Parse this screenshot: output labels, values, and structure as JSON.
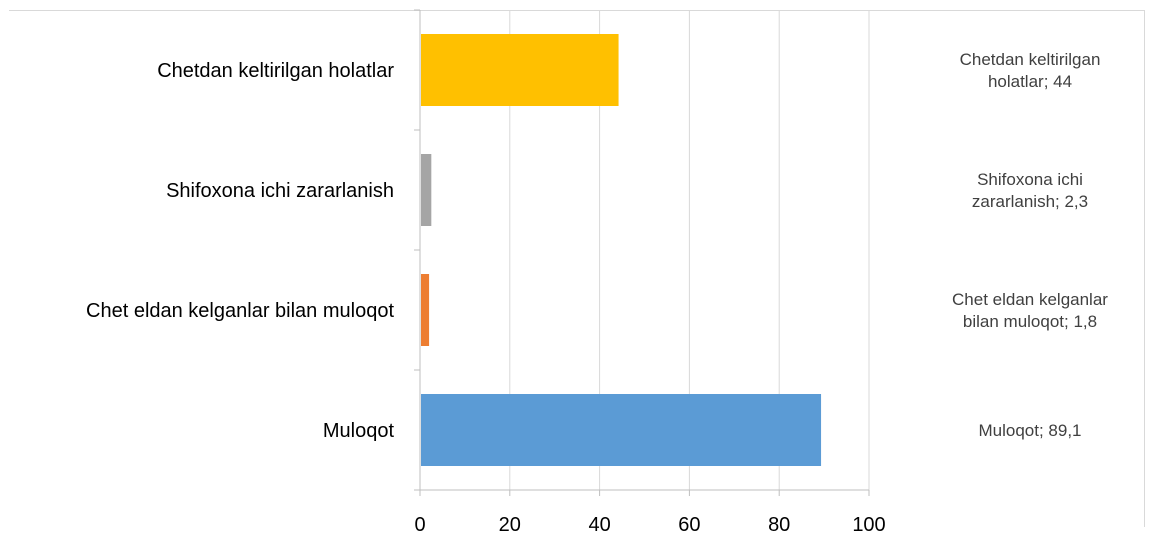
{
  "chart_data": {
    "type": "bar",
    "orientation": "horizontal",
    "title": "",
    "xlabel": "",
    "ylabel": "",
    "categories": [
      "Muloqot",
      "Chet eldan kelganlar bilan muloqot",
      "Shifoxona ichi zararlanish",
      "Chetdan keltirilgan holatlar"
    ],
    "values": [
      89.1,
      1.8,
      2.3,
      44
    ],
    "colors": [
      "#5b9bd5",
      "#ed7d31",
      "#a5a5a5",
      "#ffc000"
    ],
    "data_labels": [
      [
        "Muloqot; 89,1"
      ],
      [
        "Chet eldan kelganlar",
        "bilan muloqot; 1,8"
      ],
      [
        "Shifoxona ichi",
        "zararlanish; 2,3"
      ],
      [
        "Chetdan keltirilgan",
        "holatlar; 44"
      ]
    ],
    "xlim": [
      0,
      100
    ],
    "x_ticks": [
      "0",
      "20",
      "40",
      "60",
      "80",
      "100"
    ],
    "grid": "vertical gridlines",
    "legend": "none"
  }
}
